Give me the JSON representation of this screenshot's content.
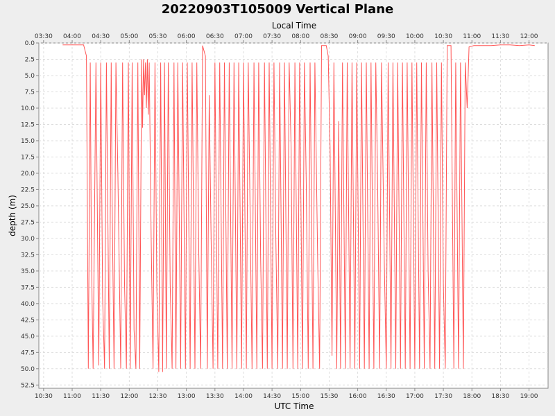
{
  "chart_data": {
    "type": "line",
    "title": "20220903T105009 Vertical Plane",
    "xlabel": "UTC Time",
    "x2label": "Local Time",
    "ylabel": "depth (m)",
    "xlim": [
      "10:25",
      "19:20"
    ],
    "ylim": [
      0.0,
      53.0
    ],
    "y_inverted": true,
    "x_ticks": [
      "10:30",
      "11:00",
      "11:30",
      "12:00",
      "12:30",
      "13:00",
      "13:30",
      "14:00",
      "14:30",
      "15:00",
      "15:30",
      "16:00",
      "16:30",
      "17:00",
      "17:30",
      "18:00",
      "18:30",
      "19:00"
    ],
    "x2_ticks": [
      "03:30",
      "04:00",
      "04:30",
      "05:00",
      "05:30",
      "06:00",
      "06:30",
      "07:00",
      "07:30",
      "08:00",
      "08:30",
      "09:00",
      "09:30",
      "10:00",
      "10:30",
      "11:00",
      "11:30",
      "12:00"
    ],
    "y_ticks": [
      "0.0",
      "2.5",
      "5.0",
      "7.5",
      "10.0",
      "12.5",
      "15.0",
      "17.5",
      "20.0",
      "22.5",
      "25.0",
      "27.5",
      "30.0",
      "32.5",
      "35.0",
      "37.5",
      "40.0",
      "42.5",
      "45.0",
      "47.5",
      "50.0",
      "52.5"
    ],
    "grid": true,
    "series": [
      {
        "color": "#ff5555",
        "points": [
          [
            "10:50",
            0.3
          ],
          [
            "11:12",
            0.3
          ],
          [
            "11:15",
            2.0
          ],
          [
            "11:17",
            50.0
          ],
          [
            "11:19",
            3.0
          ],
          [
            "11:20",
            28.0
          ],
          [
            "11:21",
            40.0
          ],
          [
            "11:22",
            50.0
          ],
          [
            "11:25",
            3.0
          ],
          [
            "11:28",
            49.5
          ],
          [
            "11:30",
            3.0
          ],
          [
            "11:32",
            39.0
          ],
          [
            "11:34",
            50.0
          ],
          [
            "11:36",
            3.0
          ],
          [
            "11:39",
            50.0
          ],
          [
            "11:41",
            3.0
          ],
          [
            "11:42",
            24.0
          ],
          [
            "11:44",
            50.0
          ],
          [
            "11:46",
            3.0
          ],
          [
            "11:48",
            20.0
          ],
          [
            "11:51",
            50.0
          ],
          [
            "11:53",
            3.0
          ],
          [
            "11:55",
            37.0
          ],
          [
            "11:57",
            50.0
          ],
          [
            "11:59",
            3.0
          ],
          [
            "12:01",
            50.0
          ],
          [
            "12:03",
            3.0
          ],
          [
            "12:05",
            44.0
          ],
          [
            "12:07",
            50.0
          ],
          [
            "12:09",
            3.0
          ],
          [
            "12:11",
            50.0
          ],
          [
            "12:13",
            2.5
          ],
          [
            "12:14",
            13.0
          ],
          [
            "12:15",
            2.5
          ],
          [
            "12:16",
            8.0
          ],
          [
            "12:17",
            3.0
          ],
          [
            "12:18",
            10.0
          ],
          [
            "12:19",
            2.5
          ],
          [
            "12:20",
            11.0
          ],
          [
            "12:21",
            3.0
          ],
          [
            "12:23",
            30.0
          ],
          [
            "12:25",
            50.0
          ],
          [
            "12:27",
            3.0
          ],
          [
            "12:29",
            38.0
          ],
          [
            "12:31",
            50.5
          ],
          [
            "12:33",
            3.0
          ],
          [
            "12:35",
            50.5
          ],
          [
            "12:37",
            3.0
          ],
          [
            "12:39",
            50.0
          ],
          [
            "12:41",
            3.0
          ],
          [
            "12:43",
            37.0
          ],
          [
            "12:45",
            50.0
          ],
          [
            "12:47",
            3.0
          ],
          [
            "12:49",
            50.0
          ],
          [
            "12:51",
            3.0
          ],
          [
            "12:54",
            50.0
          ],
          [
            "12:56",
            3.0
          ],
          [
            "12:59",
            50.0
          ],
          [
            "13:01",
            3.0
          ],
          [
            "13:04",
            50.0
          ],
          [
            "13:06",
            3.0
          ],
          [
            "13:09",
            50.0
          ],
          [
            "13:11",
            3.0
          ],
          [
            "13:13",
            32.0
          ],
          [
            "13:15",
            50.0
          ],
          [
            "13:17",
            0.4
          ],
          [
            "13:20",
            2.0
          ],
          [
            "13:22",
            50.0
          ],
          [
            "13:24",
            8.0
          ],
          [
            "13:26",
            30.0
          ],
          [
            "13:28",
            50.0
          ],
          [
            "13:30",
            3.0
          ],
          [
            "13:33",
            50.0
          ],
          [
            "13:35",
            3.0
          ],
          [
            "13:38",
            50.0
          ],
          [
            "13:40",
            3.0
          ],
          [
            "13:43",
            50.0
          ],
          [
            "13:45",
            3.0
          ],
          [
            "13:48",
            50.0
          ],
          [
            "13:50",
            3.0
          ],
          [
            "13:53",
            50.0
          ],
          [
            "13:55",
            3.0
          ],
          [
            "13:58",
            50.0
          ],
          [
            "14:00",
            3.0
          ],
          [
            "14:03",
            50.0
          ],
          [
            "14:05",
            3.0
          ],
          [
            "14:07",
            27.0
          ],
          [
            "14:09",
            50.0
          ],
          [
            "14:11",
            3.0
          ],
          [
            "14:14",
            50.0
          ],
          [
            "14:16",
            3.0
          ],
          [
            "14:18",
            33.0
          ],
          [
            "14:20",
            50.0
          ],
          [
            "14:22",
            3.0
          ],
          [
            "14:25",
            50.0
          ],
          [
            "14:27",
            3.0
          ],
          [
            "14:30",
            50.0
          ],
          [
            "14:32",
            3.0
          ],
          [
            "14:34",
            30.0
          ],
          [
            "14:36",
            50.0
          ],
          [
            "14:38",
            3.0
          ],
          [
            "14:41",
            50.0
          ],
          [
            "14:43",
            3.0
          ],
          [
            "14:46",
            50.0
          ],
          [
            "14:48",
            3.0
          ],
          [
            "14:50",
            16.0
          ],
          [
            "14:52",
            50.0
          ],
          [
            "14:54",
            3.0
          ],
          [
            "14:57",
            50.0
          ],
          [
            "14:59",
            3.0
          ],
          [
            "15:02",
            50.0
          ],
          [
            "15:04",
            3.0
          ],
          [
            "15:06",
            22.0
          ],
          [
            "15:08",
            50.0
          ],
          [
            "15:10",
            3.0
          ],
          [
            "15:13",
            50.0
          ],
          [
            "15:15",
            3.0
          ],
          [
            "15:18",
            34.0
          ],
          [
            "15:20",
            50.0
          ],
          [
            "15:22",
            0.4
          ],
          [
            "15:27",
            0.4
          ],
          [
            "15:29",
            2.0
          ],
          [
            "15:31",
            16.0
          ],
          [
            "15:33",
            48.0
          ],
          [
            "15:35",
            3.0
          ],
          [
            "15:38",
            50.0
          ],
          [
            "15:40",
            12.0
          ],
          [
            "15:42",
            50.0
          ],
          [
            "15:44",
            3.0
          ],
          [
            "15:47",
            50.0
          ],
          [
            "15:49",
            3.0
          ],
          [
            "15:52",
            50.0
          ],
          [
            "15:54",
            3.0
          ],
          [
            "15:57",
            50.0
          ],
          [
            "15:59",
            3.0
          ],
          [
            "16:02",
            50.0
          ],
          [
            "16:04",
            3.0
          ],
          [
            "16:07",
            50.0
          ],
          [
            "16:09",
            3.0
          ],
          [
            "16:12",
            50.0
          ],
          [
            "16:14",
            3.0
          ],
          [
            "16:17",
            50.0
          ],
          [
            "16:19",
            3.0
          ],
          [
            "16:21",
            22.0
          ],
          [
            "16:23",
            50.0
          ],
          [
            "16:25",
            3.0
          ],
          [
            "16:28",
            34.0
          ],
          [
            "16:30",
            50.0
          ],
          [
            "16:32",
            3.0
          ],
          [
            "16:35",
            50.0
          ],
          [
            "16:37",
            3.0
          ],
          [
            "16:40",
            50.0
          ],
          [
            "16:42",
            3.0
          ],
          [
            "16:45",
            50.0
          ],
          [
            "16:47",
            3.0
          ],
          [
            "16:50",
            50.0
          ],
          [
            "16:52",
            3.0
          ],
          [
            "16:55",
            50.0
          ],
          [
            "16:57",
            3.0
          ],
          [
            "17:00",
            50.0
          ],
          [
            "17:02",
            3.0
          ],
          [
            "17:05",
            50.0
          ],
          [
            "17:07",
            3.0
          ],
          [
            "17:10",
            50.0
          ],
          [
            "17:12",
            3.0
          ],
          [
            "17:14",
            35.0
          ],
          [
            "17:16",
            50.0
          ],
          [
            "17:18",
            3.0
          ],
          [
            "17:21",
            50.0
          ],
          [
            "17:23",
            3.0
          ],
          [
            "17:26",
            50.0
          ],
          [
            "17:28",
            3.0
          ],
          [
            "17:30",
            37.0
          ],
          [
            "17:32",
            50.0
          ],
          [
            "17:34",
            0.4
          ],
          [
            "17:38",
            0.4
          ],
          [
            "17:41",
            50.0
          ],
          [
            "17:43",
            3.0
          ],
          [
            "17:46",
            50.0
          ],
          [
            "17:48",
            3.0
          ],
          [
            "17:49",
            18.0
          ],
          [
            "17:51",
            50.0
          ],
          [
            "17:53",
            3.0
          ],
          [
            "17:55",
            10.0
          ],
          [
            "17:57",
            0.6
          ],
          [
            "18:02",
            0.4
          ],
          [
            "18:20",
            0.4
          ],
          [
            "18:30",
            0.3
          ],
          [
            "18:40",
            0.3
          ],
          [
            "18:50",
            0.4
          ],
          [
            "19:00",
            0.3
          ],
          [
            "19:06",
            0.4
          ]
        ]
      }
    ]
  }
}
